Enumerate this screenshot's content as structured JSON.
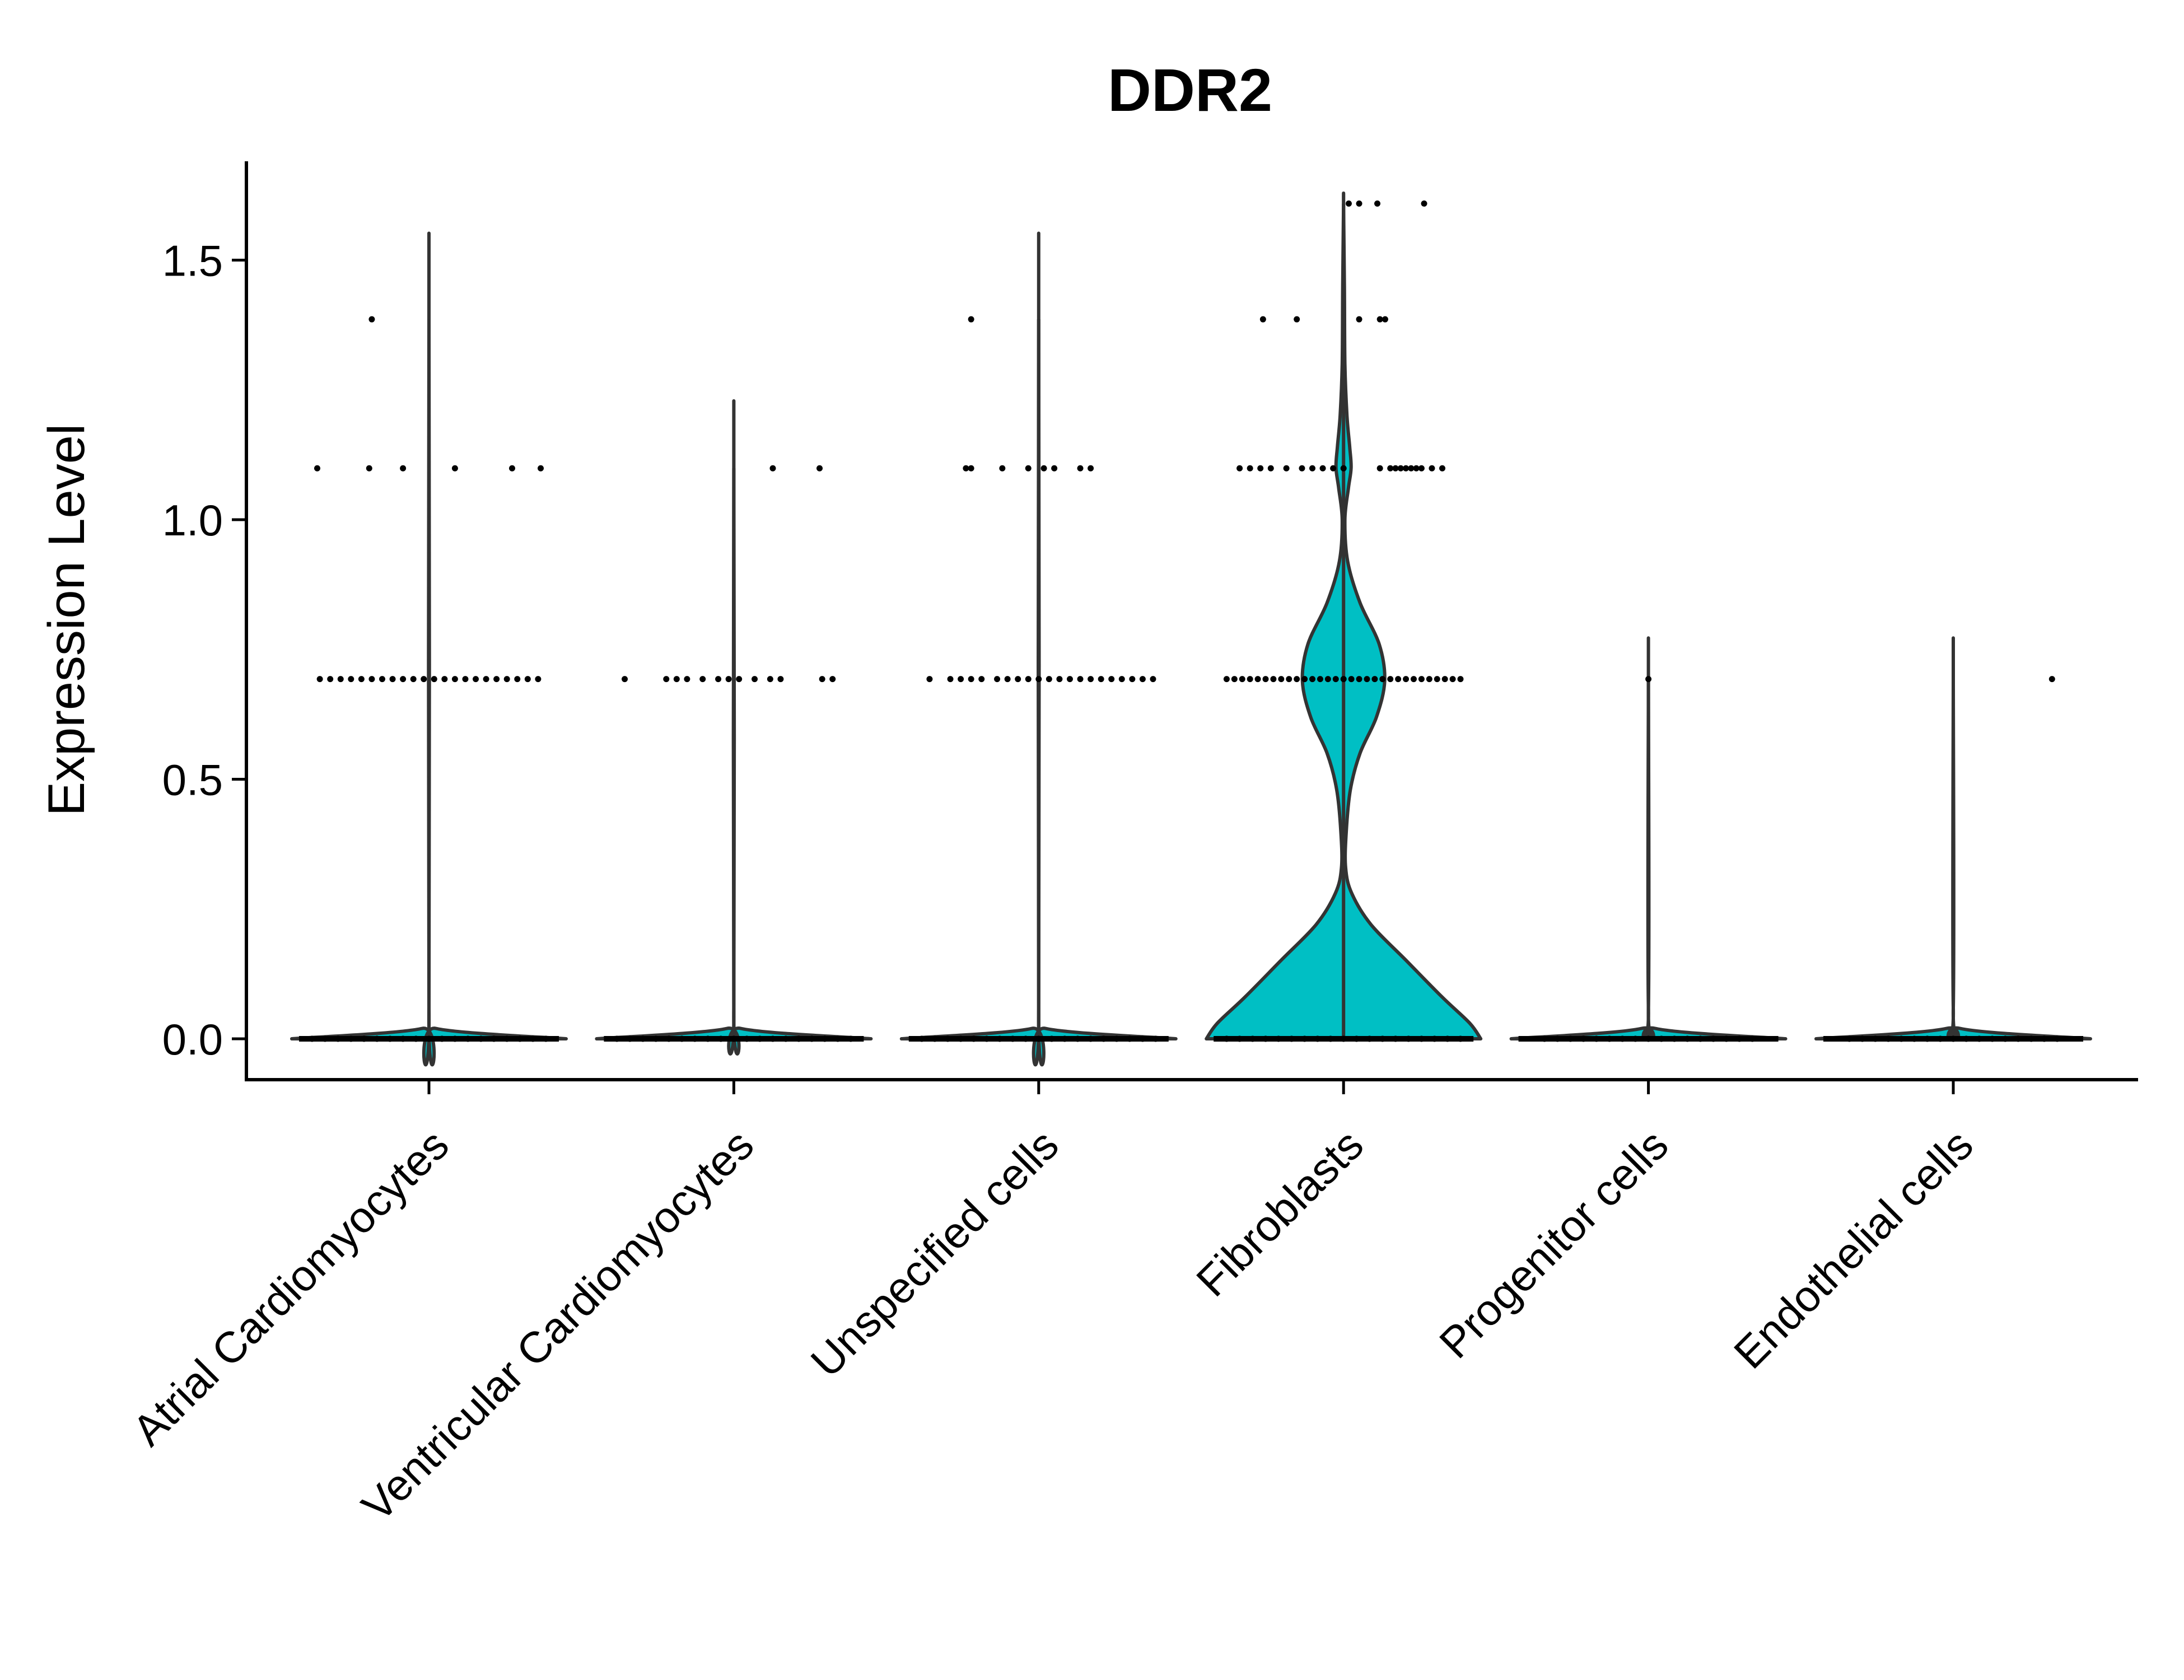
{
  "chart_data": {
    "type": "violin",
    "title": "DDR2",
    "xlabel": "",
    "ylabel": "Expression Level",
    "ylim": [
      -0.08,
      1.68
    ],
    "yticks": [
      0.0,
      0.5,
      1.0,
      1.5
    ],
    "ytick_labels": [
      "0.0",
      "0.5",
      "1.0",
      "1.5"
    ],
    "grid": false,
    "legend": "none",
    "fill_color": "#00BFC4",
    "categories": [
      "Atrial Cardiomyocytes",
      "Ventricular Cardiomyocytes",
      "Unspecified cells",
      "Fibroblasts",
      "Progenitor cells",
      "Endothelial cells"
    ],
    "series": [
      {
        "category": "Atrial Cardiomyocytes",
        "min": 0.0,
        "max": 1.386,
        "density_profile": [
          [
            0.0,
            1.0
          ],
          [
            0.02,
            0.05
          ],
          [
            0.06,
            0.0
          ],
          [
            1.386,
            0.0
          ]
        ],
        "points": [
          {
            "y": 0.0,
            "offsets": [
              -0.45,
              -0.4,
              -0.35,
              -0.3,
              -0.25,
              -0.2,
              -0.15,
              -0.1,
              -0.05,
              0.0,
              0.05,
              0.1,
              0.15,
              0.2,
              0.25,
              0.3,
              0.35,
              0.4,
              0.45
            ]
          },
          {
            "y": 0.693,
            "offsets": [
              -0.42,
              -0.38,
              -0.34,
              -0.3,
              -0.26,
              -0.22,
              -0.18,
              -0.14,
              -0.1,
              -0.06,
              -0.02,
              0.02,
              0.06,
              0.1,
              0.14,
              0.18,
              0.22,
              0.26,
              0.3,
              0.34,
              0.38,
              0.42
            ]
          },
          {
            "y": 1.099,
            "offsets": [
              -0.43,
              -0.23,
              -0.1,
              0.1,
              0.32,
              0.43
            ]
          },
          {
            "y": 1.386,
            "offsets": [
              -0.22
            ]
          }
        ]
      },
      {
        "category": "Ventricular Cardiomyocytes",
        "min": 0.0,
        "max": 1.099,
        "density_profile": [
          [
            0.0,
            1.0
          ],
          [
            0.02,
            0.05
          ],
          [
            0.06,
            0.0
          ],
          [
            1.099,
            0.0
          ]
        ],
        "points": [
          {
            "y": 0.0,
            "offsets": [
              -0.45,
              -0.4,
              -0.35,
              -0.3,
              -0.25,
              -0.2,
              -0.15,
              -0.1,
              -0.05,
              0.0,
              0.05,
              0.1,
              0.15,
              0.2,
              0.25,
              0.3,
              0.35,
              0.4,
              0.45
            ]
          },
          {
            "y": 0.693,
            "offsets": [
              -0.42,
              -0.26,
              -0.22,
              -0.18,
              -0.12,
              -0.06,
              -0.02,
              0.02,
              0.08,
              0.14,
              0.18,
              0.34,
              0.38
            ]
          },
          {
            "y": 1.099,
            "offsets": [
              0.15,
              0.33
            ]
          }
        ]
      },
      {
        "category": "Unspecified cells",
        "min": 0.0,
        "max": 1.386,
        "density_profile": [
          [
            0.0,
            1.0
          ],
          [
            0.02,
            0.05
          ],
          [
            0.06,
            0.0
          ],
          [
            1.386,
            0.0
          ]
        ],
        "points": [
          {
            "y": 0.0,
            "offsets": [
              -0.45,
              -0.4,
              -0.35,
              -0.3,
              -0.25,
              -0.2,
              -0.15,
              -0.1,
              -0.05,
              0.0,
              0.05,
              0.1,
              0.15,
              0.2,
              0.25,
              0.3,
              0.35,
              0.4,
              0.45
            ]
          },
          {
            "y": 0.693,
            "offsets": [
              -0.42,
              -0.34,
              -0.3,
              -0.26,
              -0.22,
              -0.16,
              -0.12,
              -0.08,
              -0.04,
              0.0,
              0.04,
              0.08,
              0.12,
              0.16,
              0.2,
              0.24,
              0.28,
              0.32,
              0.36,
              0.4,
              0.44
            ]
          },
          {
            "y": 1.099,
            "offsets": [
              -0.28,
              -0.26,
              -0.14,
              -0.04,
              0.02,
              0.06,
              0.16,
              0.2
            ]
          },
          {
            "y": 1.386,
            "offsets": [
              -0.26
            ]
          }
        ]
      },
      {
        "category": "Fibroblasts",
        "min": 0.0,
        "max": 1.609,
        "density_profile": [
          [
            0.0,
            1.0
          ],
          [
            0.03,
            0.92
          ],
          [
            0.08,
            0.72
          ],
          [
            0.15,
            0.46
          ],
          [
            0.22,
            0.2
          ],
          [
            0.28,
            0.06
          ],
          [
            0.33,
            0.015
          ],
          [
            0.4,
            0.02
          ],
          [
            0.48,
            0.05
          ],
          [
            0.55,
            0.12
          ],
          [
            0.62,
            0.24
          ],
          [
            0.69,
            0.3
          ],
          [
            0.76,
            0.26
          ],
          [
            0.84,
            0.12
          ],
          [
            0.92,
            0.03
          ],
          [
            1.0,
            0.01
          ],
          [
            1.06,
            0.035
          ],
          [
            1.1,
            0.055
          ],
          [
            1.14,
            0.045
          ],
          [
            1.2,
            0.025
          ],
          [
            1.3,
            0.01
          ],
          [
            1.45,
            0.006
          ],
          [
            1.609,
            0.0
          ]
        ],
        "points": [
          {
            "y": 0.0,
            "offsets": [
              -0.45,
              -0.4,
              -0.35,
              -0.3,
              -0.25,
              -0.2,
              -0.15,
              -0.1,
              -0.05,
              0.0,
              0.05,
              0.1,
              0.15,
              0.2,
              0.25,
              0.3,
              0.35,
              0.4,
              0.45
            ]
          },
          {
            "y": 0.693,
            "offsets": [
              -0.45,
              -0.42,
              -0.39,
              -0.36,
              -0.33,
              -0.3,
              -0.27,
              -0.24,
              -0.21,
              -0.18,
              -0.15,
              -0.12,
              -0.09,
              -0.06,
              -0.03,
              0.0,
              0.03,
              0.06,
              0.09,
              0.12,
              0.15,
              0.18,
              0.21,
              0.24,
              0.27,
              0.3,
              0.33,
              0.36,
              0.39,
              0.42,
              0.45
            ]
          },
          {
            "y": 1.099,
            "offsets": [
              -0.4,
              -0.36,
              -0.32,
              -0.28,
              -0.22,
              -0.16,
              -0.12,
              -0.08,
              -0.04,
              0.0,
              0.14,
              0.18,
              0.2,
              0.22,
              0.24,
              0.26,
              0.28,
              0.3,
              0.34,
              0.38
            ]
          },
          {
            "y": 1.386,
            "offsets": [
              -0.31,
              -0.18,
              0.06,
              0.14,
              0.16
            ]
          },
          {
            "y": 1.609,
            "offsets": [
              0.02,
              0.06,
              0.13,
              0.31
            ]
          }
        ]
      },
      {
        "category": "Progenitor cells",
        "min": 0.0,
        "max": 0.693,
        "density_profile": [
          [
            0.0,
            1.0
          ],
          [
            0.02,
            0.05
          ],
          [
            0.06,
            0.0
          ],
          [
            0.693,
            0.0
          ]
        ],
        "points": [
          {
            "y": 0.0,
            "offsets": [
              -0.4,
              -0.35,
              -0.3,
              -0.25,
              -0.2,
              -0.15,
              -0.1,
              -0.05,
              0.0,
              0.05,
              0.1,
              0.15,
              0.2,
              0.25,
              0.3,
              0.35,
              0.4
            ]
          },
          {
            "y": 0.693,
            "offsets": [
              0.0
            ]
          }
        ]
      },
      {
        "category": "Endothelial cells",
        "min": 0.0,
        "max": 0.693,
        "density_profile": [
          [
            0.0,
            1.0
          ],
          [
            0.02,
            0.05
          ],
          [
            0.06,
            0.0
          ],
          [
            0.693,
            0.0
          ]
        ],
        "points": [
          {
            "y": 0.0,
            "offsets": [
              -0.4,
              -0.35,
              -0.3,
              -0.25,
              -0.2,
              -0.15,
              -0.1,
              -0.05,
              0.0,
              0.05,
              0.1,
              0.15,
              0.2,
              0.25,
              0.3,
              0.35,
              0.4
            ]
          },
          {
            "y": 0.693,
            "offsets": [
              0.38
            ]
          }
        ]
      }
    ]
  }
}
